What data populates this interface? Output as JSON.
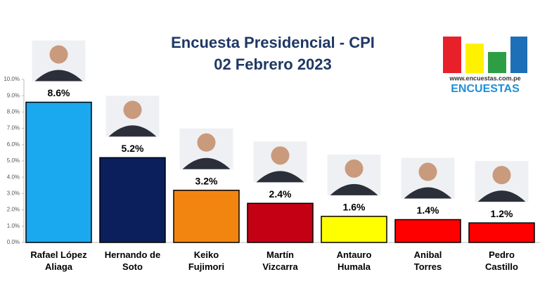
{
  "chart_data": {
    "type": "bar",
    "title": "Encuesta Presidencial - CPI",
    "subtitle": "02 Febrero 2023",
    "categories": [
      "Rafael López\nAliaga",
      "Hernando de\nSoto",
      "Keiko\nFujimori",
      "Martín\nVizcarra",
      "Antauro\nHumala",
      "Anibal\nTorres",
      "Pedro\nCastillo"
    ],
    "values": [
      8.6,
      5.2,
      3.2,
      2.4,
      1.6,
      1.4,
      1.2
    ],
    "value_labels": [
      "8.6%",
      "5.2%",
      "3.2%",
      "2.4%",
      "1.6%",
      "1.4%",
      "1.2%"
    ],
    "colors": [
      "#1aa8ee",
      "#0b1f5c",
      "#f2850f",
      "#c40015",
      "#ffff00",
      "#ff0000",
      "#ff0000"
    ],
    "ylim": [
      0,
      10
    ],
    "yticks": [
      {
        "value": 0,
        "label": "0.0%"
      },
      {
        "value": 1,
        "label": "1.0%"
      },
      {
        "value": 2,
        "label": "2.0%"
      },
      {
        "value": 3,
        "label": "3.0%"
      },
      {
        "value": 4,
        "label": "4.0%"
      },
      {
        "value": 5,
        "label": "5.0%"
      },
      {
        "value": 6,
        "label": "6.0%"
      },
      {
        "value": 7,
        "label": "7.0%"
      },
      {
        "value": 8,
        "label": "8.0%"
      },
      {
        "value": 9,
        "label": "9.0%"
      },
      {
        "value": 10,
        "label": "10.0%"
      }
    ],
    "logo": {
      "url": "www.encuestas.com.pe",
      "name": "ENCUESTAS"
    }
  }
}
